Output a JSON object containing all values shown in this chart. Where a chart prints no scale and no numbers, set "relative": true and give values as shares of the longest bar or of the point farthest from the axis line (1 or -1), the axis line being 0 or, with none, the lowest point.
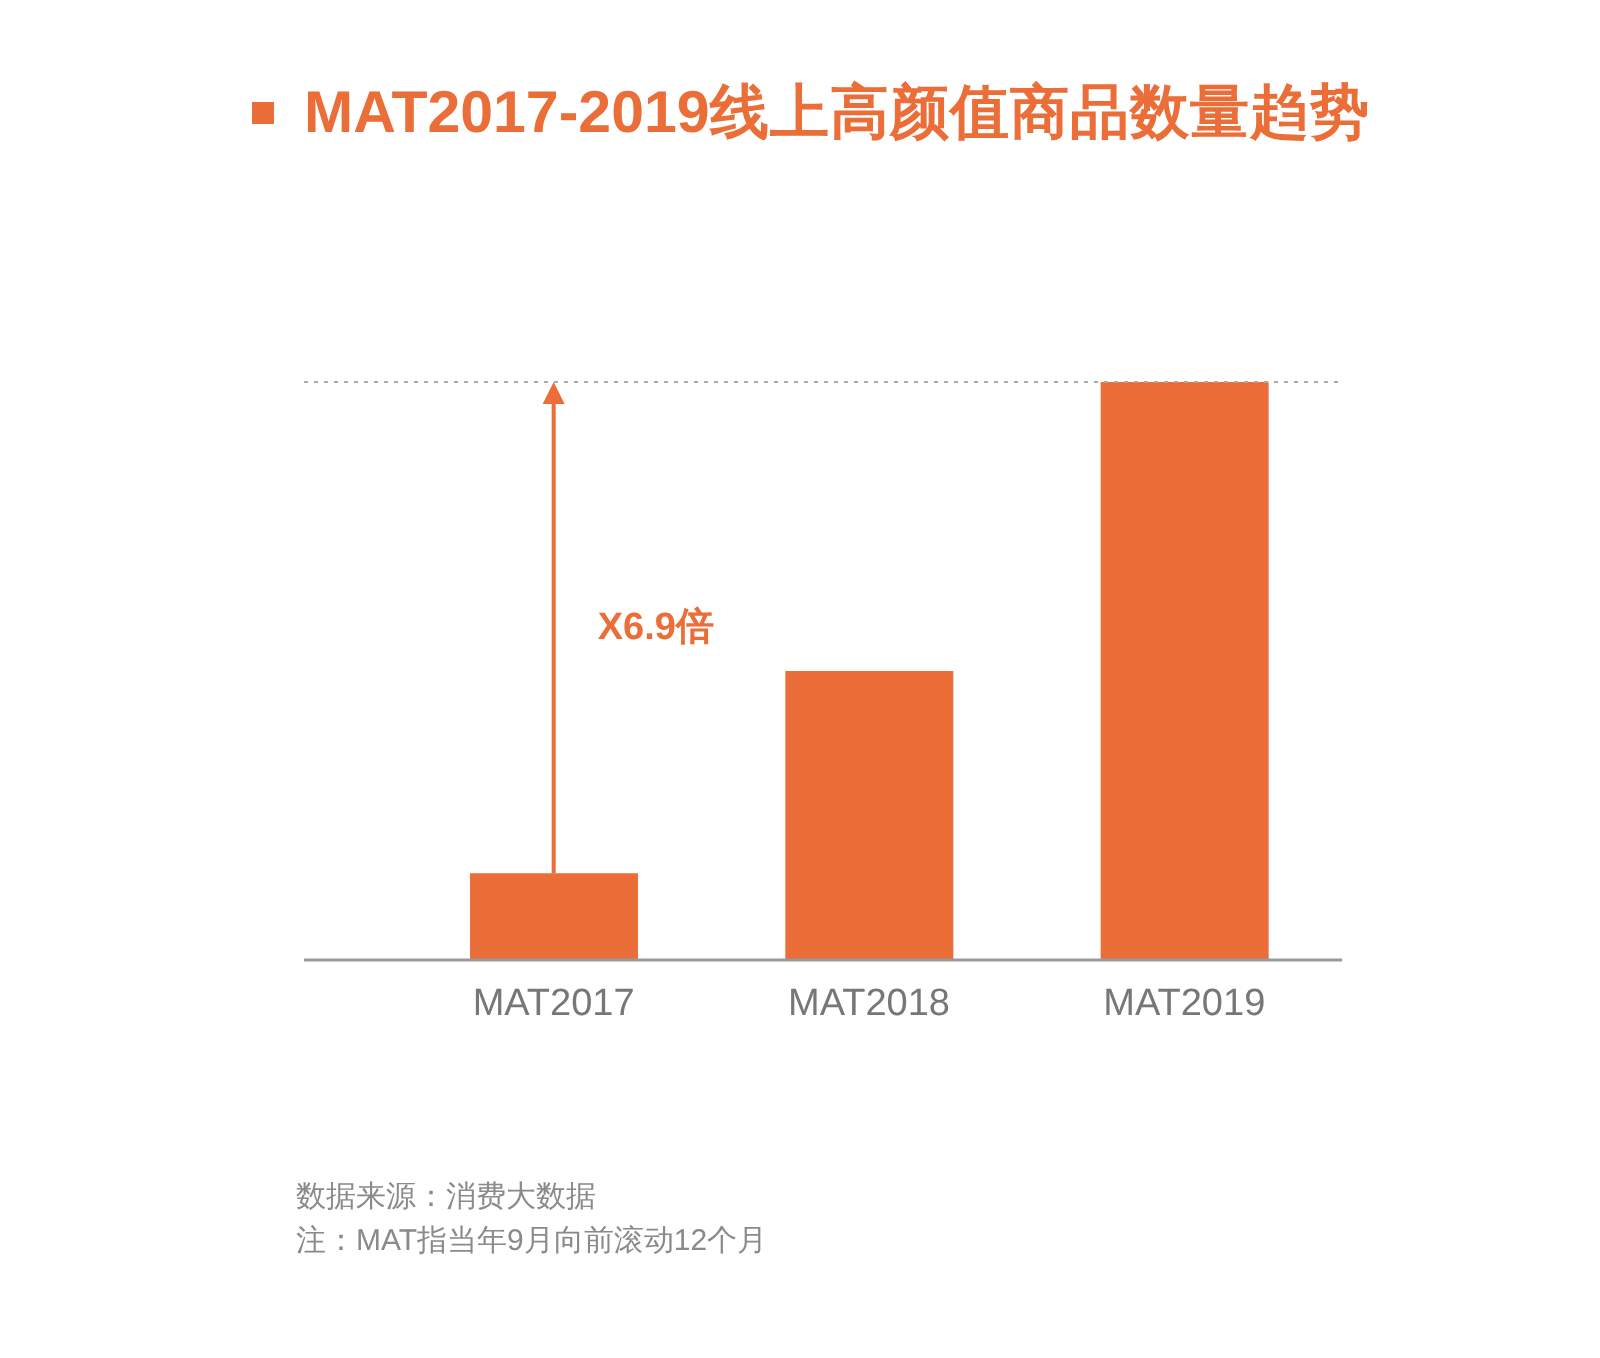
{
  "chart_data": {
    "type": "bar",
    "title": "MAT2017-2019线上高颜值商品数量趋势",
    "categories": [
      "MAT2017",
      "MAT2018",
      "MAT2019"
    ],
    "values": [
      0.15,
      0.5,
      1
    ],
    "color": "#eb6d37",
    "relative": true,
    "ref_lines": [
      {
        "axis": "y",
        "value": 1,
        "color": "#aaaaaa",
        "line_style": "dotted"
      }
    ],
    "annotations": [
      "X6.9倍",
      "数据来源：消费大数据",
      "注：MAT指当年9月向前滚动12个月"
    ]
  }
}
